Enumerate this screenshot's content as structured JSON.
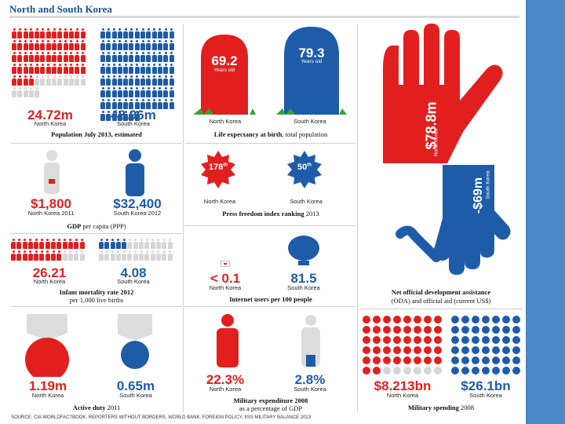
{
  "title": "North and South Korea",
  "labels": {
    "north": "North Korea",
    "south": "South Korea"
  },
  "colors": {
    "red": "#e21f1f",
    "blue": "#1f5ca8",
    "grey": "#d6d6d6",
    "frame": "#4a86c8"
  },
  "population": {
    "north_value": "24.72m",
    "south_value": "48.96m",
    "caption": "Population July 2013, estimated"
  },
  "life": {
    "north_value": "69.2",
    "south_value": "79.3",
    "unit": "Years old",
    "caption_bold": "Life expectancy at birth",
    "caption_rest": ", total population"
  },
  "aid": {
    "north_value": "$78.8m",
    "south_value": "-$69m",
    "north_label": "North Korea",
    "south_label": "South Korea",
    "caption_bold": "Net official development assistance",
    "caption_rest": "(ODA) and official aid (current US$)"
  },
  "gdp": {
    "north_value": "$1,800",
    "north_label": "North Korea 2011",
    "south_value": "$32,400",
    "south_label": "South Korea 2012",
    "caption_bold": "GDP",
    "caption_rest": " per capita (PPP)"
  },
  "press": {
    "north_value": "178",
    "north_suffix": "th",
    "south_value": "50",
    "south_suffix": "th",
    "caption_bold": "Press freedom index ranking",
    "caption_rest": " 2013"
  },
  "infant": {
    "north_value": "26.21",
    "south_value": "4.08",
    "caption_bold": "Infant mortality rate 2012",
    "caption_rest": "per 1,000 live births"
  },
  "internet": {
    "north_value": "< 0.1",
    "south_value": "81.5",
    "caption": "Internet users per 100 people"
  },
  "duty": {
    "north_value": "1.19m",
    "south_value": "0.65m",
    "caption_bold": "Active duty",
    "caption_rest": " 2011"
  },
  "milexp": {
    "north_value": "22.3%",
    "south_value": "2.8%",
    "caption_bold": "Military expenditure 2008",
    "caption_rest": "as a percentage of GDP"
  },
  "milspend": {
    "north_value": "$8.213bn",
    "south_value": "$26.1bn",
    "caption_bold": "Military spending",
    "caption_rest": " 2008"
  },
  "source": "SOURCE: CIA WORLDFACTBOOK, REPORTERS WITHOUT BORDERS, WORLD BANK, FOREIGN POLICY, IISS MILITARY BALANCE 2013"
}
